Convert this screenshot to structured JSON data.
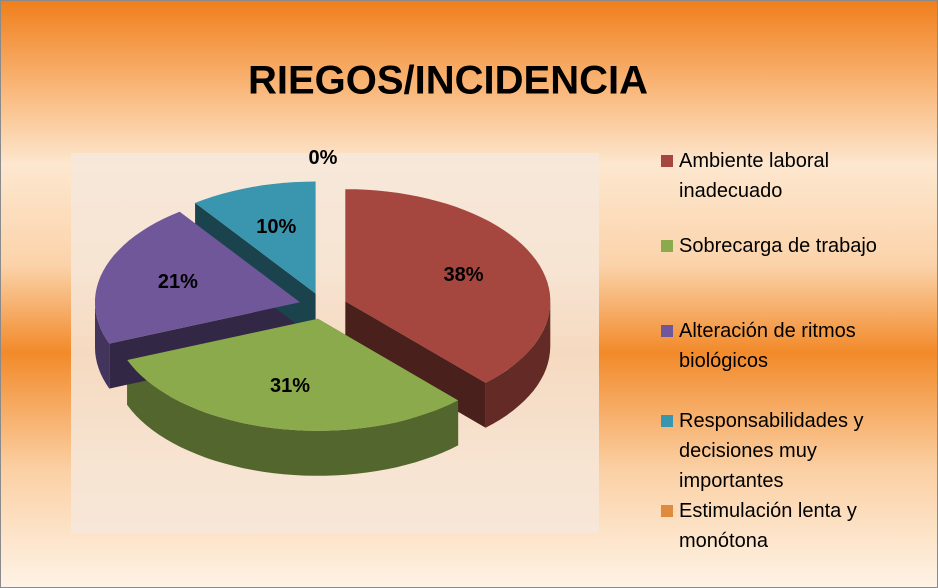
{
  "chart_data": {
    "type": "pie",
    "title": "RIEGOS/INCIDENCIA",
    "categories": [
      "Ambiente laboral inadecuado",
      "Sobrecarga de trabajo",
      "Alteración de ritmos biológicos",
      "Responsabilidades y decisiones muy importantes",
      "Estimulación lenta y monótona"
    ],
    "values": [
      38,
      31,
      21,
      10,
      0
    ],
    "value_labels": [
      "38%",
      "31%",
      "21%",
      "10%",
      "0%"
    ],
    "colors": [
      "#a5463f",
      "#8aaa4b",
      "#70579a",
      "#3a95ae",
      "#e08a3d"
    ],
    "legend": "right"
  }
}
